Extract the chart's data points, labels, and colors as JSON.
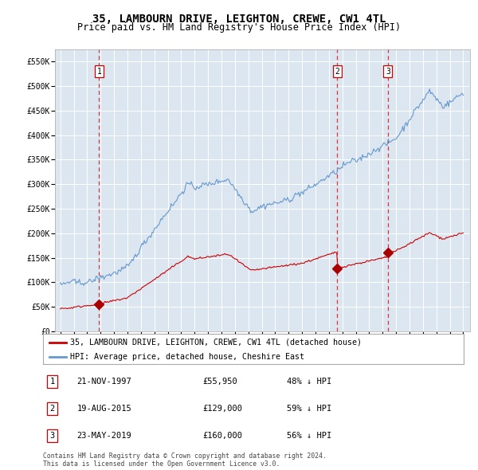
{
  "title": "35, LAMBOURN DRIVE, LEIGHTON, CREWE, CW1 4TL",
  "subtitle": "Price paid vs. HM Land Registry's House Price Index (HPI)",
  "title_fontsize": 10,
  "subtitle_fontsize": 8.5,
  "background_color": "#ffffff",
  "plot_bg_color": "#dce6f1",
  "grid_color": "#ffffff",
  "ylim": [
    0,
    575000
  ],
  "yticks": [
    0,
    50000,
    100000,
    150000,
    200000,
    250000,
    300000,
    350000,
    400000,
    450000,
    500000,
    550000
  ],
  "ytick_labels": [
    "£0",
    "£50K",
    "£100K",
    "£150K",
    "£200K",
    "£250K",
    "£300K",
    "£350K",
    "£400K",
    "£450K",
    "£500K",
    "£550K"
  ],
  "sale_years_float": [
    1997.89,
    2015.63,
    2019.39
  ],
  "sale_prices": [
    55950,
    129000,
    160000
  ],
  "sale_labels": [
    "1",
    "2",
    "3"
  ],
  "vline_color": "#dd2222",
  "property_line_color": "#cc0000",
  "hpi_line_color": "#6699cc",
  "marker_color": "#aa0000",
  "legend_property_label": "35, LAMBOURN DRIVE, LEIGHTON, CREWE, CW1 4TL (detached house)",
  "legend_hpi_label": "HPI: Average price, detached house, Cheshire East",
  "footnote": "Contains HM Land Registry data © Crown copyright and database right 2024.\nThis data is licensed under the Open Government Licence v3.0.",
  "table_rows": [
    [
      "1",
      "21-NOV-1997",
      "£55,950",
      "48% ↓ HPI"
    ],
    [
      "2",
      "19-AUG-2015",
      "£129,000",
      "59% ↓ HPI"
    ],
    [
      "3",
      "23-MAY-2019",
      "£160,000",
      "56% ↓ HPI"
    ]
  ]
}
